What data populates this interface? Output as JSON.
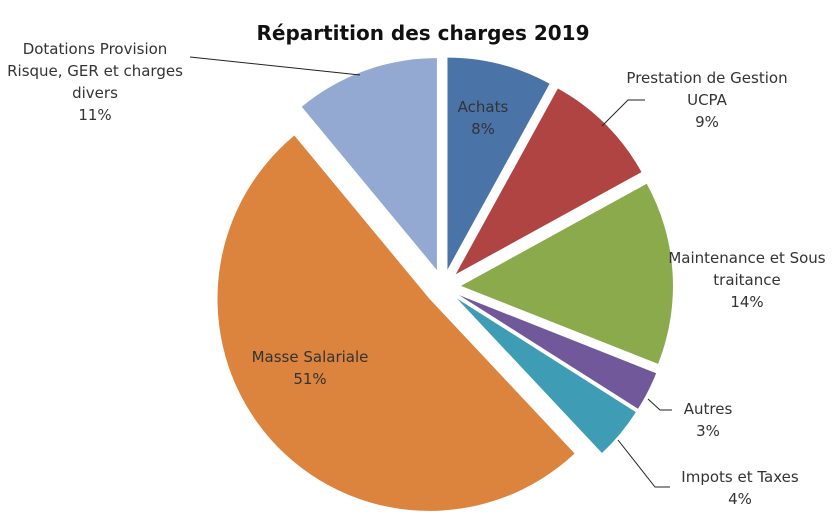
{
  "chart_data": {
    "type": "pie",
    "title": "Répartition des charges 2019",
    "categories": [
      "Achats",
      "Prestation de Gestion UCPA",
      "Maintenance et Sous traitance",
      "Autres",
      "Impots et Taxes",
      "Masse Salariale",
      "Dotations Provision Risque, GER et charges divers"
    ],
    "values": [
      8,
      9,
      14,
      3,
      4,
      51,
      11
    ],
    "value_labels": [
      "8%",
      "9%",
      "14%",
      "3%",
      "4%",
      "51%",
      "11%"
    ],
    "colors": [
      "#4a73a8",
      "#b04443",
      "#8aaa4b",
      "#71589a",
      "#3e9db4",
      "#dc833d",
      "#93a9d2"
    ]
  }
}
